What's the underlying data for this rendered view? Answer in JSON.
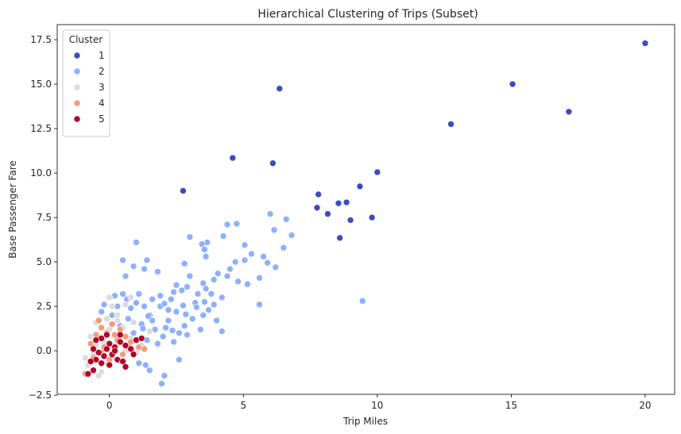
{
  "chart_data": {
    "type": "scatter",
    "title": "Hierarchical Clustering of Trips (Subset)",
    "xlabel": "Trip Miles",
    "ylabel": "Base Passenger Fare",
    "xlim": [
      -1.95,
      21.1
    ],
    "ylim": [
      -2.45,
      18.35
    ],
    "xticks": [
      0,
      5,
      10,
      15,
      20
    ],
    "xtick_labels": [
      "0",
      "5",
      "10",
      "15",
      "20"
    ],
    "yticks": [
      -2.5,
      0.0,
      2.5,
      5.0,
      7.5,
      10.0,
      12.5,
      15.0,
      17.5
    ],
    "ytick_labels": [
      "−2.5",
      "0.0",
      "2.5",
      "5.0",
      "7.5",
      "10.0",
      "12.5",
      "15.0",
      "17.5"
    ],
    "grid": false,
    "legend": {
      "title": "Cluster",
      "placement": "top-left"
    },
    "series": [
      {
        "name": "1",
        "color": "#3b4cc0",
        "points": [
          [
            20.0,
            17.3
          ],
          [
            15.05,
            15.0
          ],
          [
            17.15,
            13.45
          ],
          [
            12.75,
            12.75
          ],
          [
            6.35,
            14.75
          ],
          [
            4.6,
            10.85
          ],
          [
            6.1,
            10.55
          ],
          [
            2.75,
            9.0
          ],
          [
            10.0,
            10.05
          ],
          [
            9.35,
            9.25
          ],
          [
            7.8,
            8.8
          ],
          [
            8.55,
            8.3
          ],
          [
            8.85,
            8.35
          ],
          [
            7.75,
            8.05
          ],
          [
            8.15,
            7.7
          ],
          [
            9.0,
            7.35
          ],
          [
            9.8,
            7.5
          ],
          [
            8.6,
            6.35
          ]
        ]
      },
      {
        "name": "2",
        "color": "#8db0fe",
        "points": [
          [
            6.0,
            7.7
          ],
          [
            6.6,
            7.4
          ],
          [
            4.75,
            7.15
          ],
          [
            4.4,
            7.1
          ],
          [
            6.15,
            6.8
          ],
          [
            6.8,
            6.5
          ],
          [
            4.25,
            6.45
          ],
          [
            1.0,
            6.1
          ],
          [
            3.65,
            6.1
          ],
          [
            3.45,
            6.0
          ],
          [
            5.05,
            5.95
          ],
          [
            3.55,
            5.7
          ],
          [
            3.0,
            6.4
          ],
          [
            6.5,
            5.8
          ],
          [
            5.75,
            5.3
          ],
          [
            0.5,
            5.1
          ],
          [
            1.4,
            5.1
          ],
          [
            5.3,
            5.45
          ],
          [
            6.2,
            4.7
          ],
          [
            5.05,
            5.1
          ],
          [
            4.5,
            4.6
          ],
          [
            4.7,
            5.0
          ],
          [
            3.6,
            5.3
          ],
          [
            4.4,
            4.2
          ],
          [
            5.9,
            4.95
          ],
          [
            2.8,
            4.9
          ],
          [
            4.05,
            4.35
          ],
          [
            0.9,
            4.75
          ],
          [
            1.3,
            4.6
          ],
          [
            4.8,
            3.9
          ],
          [
            5.6,
            4.1
          ],
          [
            3.9,
            4.0
          ],
          [
            0.6,
            4.2
          ],
          [
            1.8,
            4.45
          ],
          [
            5.15,
            3.75
          ],
          [
            5.6,
            2.6
          ],
          [
            9.45,
            2.8
          ],
          [
            4.2,
            1.1
          ],
          [
            2.6,
            -0.5
          ],
          [
            1.95,
            -1.85
          ],
          [
            2.05,
            -1.4
          ],
          [
            1.5,
            -1.1
          ],
          [
            1.35,
            -0.8
          ],
          [
            1.1,
            -0.7
          ],
          [
            3.5,
            3.8
          ],
          [
            2.9,
            3.6
          ],
          [
            2.4,
            3.3
          ],
          [
            3.8,
            3.2
          ],
          [
            3.2,
            2.7
          ],
          [
            2.5,
            2.2
          ],
          [
            1.9,
            2.5
          ],
          [
            1.5,
            2.0
          ],
          [
            2.2,
            1.7
          ],
          [
            2.8,
            1.4
          ],
          [
            3.5,
            2.0
          ],
          [
            3.9,
            2.6
          ],
          [
            1.7,
            1.2
          ],
          [
            1.2,
            1.5
          ],
          [
            2.0,
            0.8
          ],
          [
            2.6,
            1.0
          ],
          [
            3.1,
            1.8
          ],
          [
            0.9,
            1.0
          ],
          [
            1.4,
            0.6
          ],
          [
            2.3,
            2.9
          ],
          [
            3.3,
            3.2
          ],
          [
            1.6,
            2.9
          ],
          [
            0.8,
            2.4
          ],
          [
            1.1,
            3.2
          ],
          [
            2.7,
            3.4
          ],
          [
            3.7,
            2.3
          ],
          [
            4.0,
            1.7
          ],
          [
            3.4,
            1.2
          ],
          [
            2.9,
            0.9
          ],
          [
            2.1,
            1.3
          ],
          [
            1.8,
            0.4
          ],
          [
            1.3,
            2.5
          ],
          [
            0.7,
            1.8
          ],
          [
            1.0,
            2.7
          ],
          [
            2.5,
            3.7
          ],
          [
            3.0,
            4.2
          ],
          [
            3.6,
            3.5
          ],
          [
            4.2,
            3.0
          ],
          [
            2.2,
            2.3
          ],
          [
            1.9,
            3.1
          ],
          [
            0.3,
            2.5
          ],
          [
            0.2,
            3.1
          ],
          [
            0.5,
            3.2
          ],
          [
            -0.2,
            2.6
          ],
          [
            0.4,
            1.4
          ],
          [
            0.1,
            2.0
          ],
          [
            -0.3,
            2.2
          ],
          [
            2.4,
            0.5
          ],
          [
            1.6,
            1.7
          ],
          [
            2.75,
            2.55
          ],
          [
            3.25,
            2.45
          ],
          [
            1.45,
            1.95
          ],
          [
            2.35,
            1.15
          ],
          [
            3.55,
            2.75
          ],
          [
            0.65,
            2.9
          ],
          [
            1.25,
            1.25
          ],
          [
            2.85,
            2.05
          ],
          [
            2.05,
            2.65
          ]
        ]
      },
      {
        "name": "3",
        "color": "#dddcdc",
        "points": [
          [
            0.1,
            2.5
          ],
          [
            0.3,
            2.0
          ],
          [
            -0.1,
            1.8
          ],
          [
            0.6,
            2.6
          ],
          [
            0.8,
            3.0
          ],
          [
            -0.5,
            1.6
          ],
          [
            0.0,
            1.2
          ],
          [
            0.5,
            1.3
          ],
          [
            -0.7,
            0.8
          ],
          [
            -0.2,
            0.5
          ],
          [
            0.2,
            0.3
          ],
          [
            -0.6,
            -0.2
          ],
          [
            -0.8,
            -0.8
          ],
          [
            0.4,
            -0.6
          ],
          [
            0.1,
            -0.4
          ],
          [
            -0.3,
            -1.2
          ],
          [
            -0.4,
            -1.4
          ],
          [
            0.8,
            0.7
          ],
          [
            1.2,
            0.3
          ],
          [
            1.0,
            -0.1
          ],
          [
            0.6,
            0.0
          ],
          [
            -0.1,
            -0.7
          ],
          [
            0.0,
            3.0
          ],
          [
            1.5,
            1.1
          ],
          [
            0.3,
            1.7
          ],
          [
            -0.9,
            -0.4
          ],
          [
            -0.5,
            0.3
          ],
          [
            0.9,
            1.6
          ]
        ]
      },
      {
        "name": "4",
        "color": "#f49a7b",
        "points": [
          [
            -0.4,
            1.7
          ],
          [
            -0.3,
            1.3
          ],
          [
            -0.1,
            1.0
          ],
          [
            0.1,
            1.5
          ],
          [
            0.4,
            1.2
          ],
          [
            0.6,
            0.8
          ],
          [
            0.8,
            0.5
          ],
          [
            1.1,
            0.2
          ],
          [
            1.3,
            0.1
          ],
          [
            -0.5,
            0.9
          ],
          [
            -0.7,
            0.4
          ],
          [
            -0.2,
            0.2
          ],
          [
            0.3,
            0.6
          ],
          [
            0.5,
            -0.2
          ],
          [
            -0.6,
            -0.4
          ],
          [
            -0.9,
            -1.3
          ],
          [
            0.0,
            -0.5
          ],
          [
            0.7,
            0.2
          ],
          [
            -0.3,
            -0.1
          ],
          [
            0.2,
            0.9
          ]
        ]
      },
      {
        "name": "5",
        "color": "#b40426",
        "points": [
          [
            -0.3,
            0.7
          ],
          [
            -0.1,
            0.9
          ],
          [
            -0.5,
            0.6
          ],
          [
            0.0,
            0.4
          ],
          [
            0.2,
            0.2
          ],
          [
            0.4,
            0.5
          ],
          [
            0.6,
            0.3
          ],
          [
            0.8,
            0.1
          ],
          [
            1.0,
            0.6
          ],
          [
            1.2,
            0.7
          ],
          [
            -0.6,
            0.1
          ],
          [
            -0.4,
            -0.1
          ],
          [
            -0.2,
            -0.3
          ],
          [
            0.1,
            -0.2
          ],
          [
            0.3,
            -0.5
          ],
          [
            0.5,
            -0.6
          ],
          [
            0.6,
            -0.9
          ],
          [
            -0.5,
            -0.5
          ],
          [
            -0.7,
            -0.6
          ],
          [
            -0.8,
            -1.3
          ],
          [
            -0.6,
            -1.1
          ],
          [
            -0.3,
            -0.7
          ],
          [
            0.0,
            -0.8
          ],
          [
            0.2,
            0.0
          ],
          [
            0.9,
            -0.2
          ],
          [
            -0.1,
            0.1
          ],
          [
            0.4,
            0.9
          ]
        ]
      }
    ]
  }
}
